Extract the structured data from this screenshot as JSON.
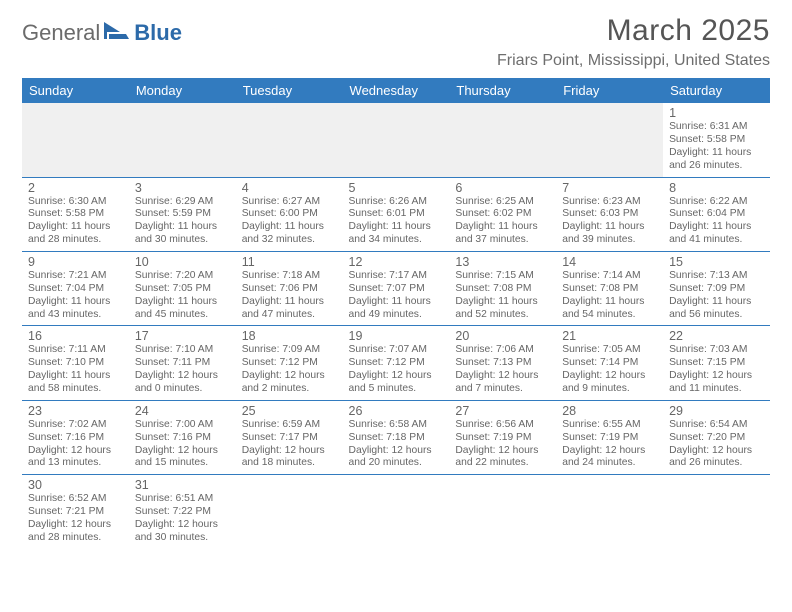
{
  "brand": {
    "part1": "General",
    "part2": "Blue"
  },
  "title": "March 2025",
  "location": "Friars Point, Mississippi, United States",
  "colors": {
    "header_bg": "#327bbf",
    "header_text": "#ffffff",
    "border": "#327bbf",
    "text": "#666666",
    "brand_blue": "#2c6aa9",
    "brand_grey": "#6b6b6b",
    "empty_bg": "#f0f0f0"
  },
  "weekdays": [
    "Sunday",
    "Monday",
    "Tuesday",
    "Wednesday",
    "Thursday",
    "Friday",
    "Saturday"
  ],
  "weeks": [
    [
      null,
      null,
      null,
      null,
      null,
      null,
      {
        "day": "1",
        "sunrise": "Sunrise: 6:31 AM",
        "sunset": "Sunset: 5:58 PM",
        "daylight": "Daylight: 11 hours and 26 minutes."
      }
    ],
    [
      {
        "day": "2",
        "sunrise": "Sunrise: 6:30 AM",
        "sunset": "Sunset: 5:58 PM",
        "daylight": "Daylight: 11 hours and 28 minutes."
      },
      {
        "day": "3",
        "sunrise": "Sunrise: 6:29 AM",
        "sunset": "Sunset: 5:59 PM",
        "daylight": "Daylight: 11 hours and 30 minutes."
      },
      {
        "day": "4",
        "sunrise": "Sunrise: 6:27 AM",
        "sunset": "Sunset: 6:00 PM",
        "daylight": "Daylight: 11 hours and 32 minutes."
      },
      {
        "day": "5",
        "sunrise": "Sunrise: 6:26 AM",
        "sunset": "Sunset: 6:01 PM",
        "daylight": "Daylight: 11 hours and 34 minutes."
      },
      {
        "day": "6",
        "sunrise": "Sunrise: 6:25 AM",
        "sunset": "Sunset: 6:02 PM",
        "daylight": "Daylight: 11 hours and 37 minutes."
      },
      {
        "day": "7",
        "sunrise": "Sunrise: 6:23 AM",
        "sunset": "Sunset: 6:03 PM",
        "daylight": "Daylight: 11 hours and 39 minutes."
      },
      {
        "day": "8",
        "sunrise": "Sunrise: 6:22 AM",
        "sunset": "Sunset: 6:04 PM",
        "daylight": "Daylight: 11 hours and 41 minutes."
      }
    ],
    [
      {
        "day": "9",
        "sunrise": "Sunrise: 7:21 AM",
        "sunset": "Sunset: 7:04 PM",
        "daylight": "Daylight: 11 hours and 43 minutes."
      },
      {
        "day": "10",
        "sunrise": "Sunrise: 7:20 AM",
        "sunset": "Sunset: 7:05 PM",
        "daylight": "Daylight: 11 hours and 45 minutes."
      },
      {
        "day": "11",
        "sunrise": "Sunrise: 7:18 AM",
        "sunset": "Sunset: 7:06 PM",
        "daylight": "Daylight: 11 hours and 47 minutes."
      },
      {
        "day": "12",
        "sunrise": "Sunrise: 7:17 AM",
        "sunset": "Sunset: 7:07 PM",
        "daylight": "Daylight: 11 hours and 49 minutes."
      },
      {
        "day": "13",
        "sunrise": "Sunrise: 7:15 AM",
        "sunset": "Sunset: 7:08 PM",
        "daylight": "Daylight: 11 hours and 52 minutes."
      },
      {
        "day": "14",
        "sunrise": "Sunrise: 7:14 AM",
        "sunset": "Sunset: 7:08 PM",
        "daylight": "Daylight: 11 hours and 54 minutes."
      },
      {
        "day": "15",
        "sunrise": "Sunrise: 7:13 AM",
        "sunset": "Sunset: 7:09 PM",
        "daylight": "Daylight: 11 hours and 56 minutes."
      }
    ],
    [
      {
        "day": "16",
        "sunrise": "Sunrise: 7:11 AM",
        "sunset": "Sunset: 7:10 PM",
        "daylight": "Daylight: 11 hours and 58 minutes."
      },
      {
        "day": "17",
        "sunrise": "Sunrise: 7:10 AM",
        "sunset": "Sunset: 7:11 PM",
        "daylight": "Daylight: 12 hours and 0 minutes."
      },
      {
        "day": "18",
        "sunrise": "Sunrise: 7:09 AM",
        "sunset": "Sunset: 7:12 PM",
        "daylight": "Daylight: 12 hours and 2 minutes."
      },
      {
        "day": "19",
        "sunrise": "Sunrise: 7:07 AM",
        "sunset": "Sunset: 7:12 PM",
        "daylight": "Daylight: 12 hours and 5 minutes."
      },
      {
        "day": "20",
        "sunrise": "Sunrise: 7:06 AM",
        "sunset": "Sunset: 7:13 PM",
        "daylight": "Daylight: 12 hours and 7 minutes."
      },
      {
        "day": "21",
        "sunrise": "Sunrise: 7:05 AM",
        "sunset": "Sunset: 7:14 PM",
        "daylight": "Daylight: 12 hours and 9 minutes."
      },
      {
        "day": "22",
        "sunrise": "Sunrise: 7:03 AM",
        "sunset": "Sunset: 7:15 PM",
        "daylight": "Daylight: 12 hours and 11 minutes."
      }
    ],
    [
      {
        "day": "23",
        "sunrise": "Sunrise: 7:02 AM",
        "sunset": "Sunset: 7:16 PM",
        "daylight": "Daylight: 12 hours and 13 minutes."
      },
      {
        "day": "24",
        "sunrise": "Sunrise: 7:00 AM",
        "sunset": "Sunset: 7:16 PM",
        "daylight": "Daylight: 12 hours and 15 minutes."
      },
      {
        "day": "25",
        "sunrise": "Sunrise: 6:59 AM",
        "sunset": "Sunset: 7:17 PM",
        "daylight": "Daylight: 12 hours and 18 minutes."
      },
      {
        "day": "26",
        "sunrise": "Sunrise: 6:58 AM",
        "sunset": "Sunset: 7:18 PM",
        "daylight": "Daylight: 12 hours and 20 minutes."
      },
      {
        "day": "27",
        "sunrise": "Sunrise: 6:56 AM",
        "sunset": "Sunset: 7:19 PM",
        "daylight": "Daylight: 12 hours and 22 minutes."
      },
      {
        "day": "28",
        "sunrise": "Sunrise: 6:55 AM",
        "sunset": "Sunset: 7:19 PM",
        "daylight": "Daylight: 12 hours and 24 minutes."
      },
      {
        "day": "29",
        "sunrise": "Sunrise: 6:54 AM",
        "sunset": "Sunset: 7:20 PM",
        "daylight": "Daylight: 12 hours and 26 minutes."
      }
    ],
    [
      {
        "day": "30",
        "sunrise": "Sunrise: 6:52 AM",
        "sunset": "Sunset: 7:21 PM",
        "daylight": "Daylight: 12 hours and 28 minutes."
      },
      {
        "day": "31",
        "sunrise": "Sunrise: 6:51 AM",
        "sunset": "Sunset: 7:22 PM",
        "daylight": "Daylight: 12 hours and 30 minutes."
      },
      null,
      null,
      null,
      null,
      null
    ]
  ]
}
